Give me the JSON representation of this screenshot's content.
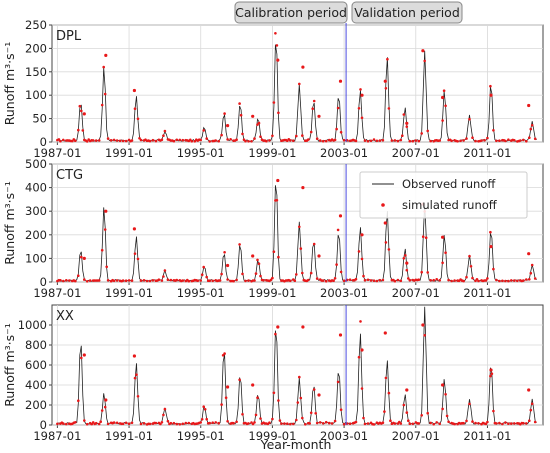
{
  "period_labels": {
    "calibration": "Calibration period",
    "validation": "Validation period"
  },
  "legend": {
    "observed": "Observed runoff",
    "simulated": "simulated runoff"
  },
  "colors": {
    "observed": "#222222",
    "simulated": "#e8181a",
    "split_line": "#4a4ae0",
    "grid": "#d9d9d9"
  },
  "xlabel": "Year-month",
  "chart_data": [
    {
      "type": "line",
      "panel_label": "DPL",
      "ylabel": "Runoff m³·s⁻¹",
      "ylim": [
        0,
        250
      ],
      "yticks": [
        0,
        50,
        100,
        150,
        200,
        250
      ],
      "x_range": [
        1986.7,
        2014.1
      ],
      "xticks": [
        "1987-01",
        "1991-01",
        "1995-01",
        "1999-01",
        "2003-01",
        "2007-01",
        "2011-01"
      ],
      "split": "2003-01",
      "peaks": [
        [
          1988.3,
          85
        ],
        [
          1989.6,
          160
        ],
        [
          1991.4,
          95
        ],
        [
          1993.0,
          20
        ],
        [
          1995.2,
          30
        ],
        [
          1996.3,
          60
        ],
        [
          1997.2,
          80
        ],
        [
          1998.2,
          50
        ],
        [
          1999.2,
          225
        ],
        [
          2000.5,
          120
        ],
        [
          2001.3,
          88
        ],
        [
          2002.7,
          100
        ],
        [
          2003.9,
          110
        ],
        [
          2005.4,
          180
        ],
        [
          2006.4,
          70
        ],
        [
          2007.5,
          190
        ],
        [
          2008.6,
          108
        ],
        [
          2010.0,
          55
        ],
        [
          2011.2,
          125
        ],
        [
          2013.5,
          40
        ]
      ],
      "sim_peaks": [
        [
          1988.5,
          60
        ],
        [
          1989.7,
          185
        ],
        [
          1991.3,
          110
        ],
        [
          1996.5,
          35
        ],
        [
          1997.9,
          55
        ],
        [
          1999.3,
          175
        ],
        [
          2000.7,
          160
        ],
        [
          2001.6,
          55
        ],
        [
          2002.8,
          130
        ],
        [
          2004.0,
          100
        ],
        [
          2005.3,
          130
        ],
        [
          2006.5,
          40
        ],
        [
          2007.4,
          195
        ],
        [
          2008.5,
          95
        ],
        [
          2011.2,
          100
        ],
        [
          2013.3,
          78
        ]
      ]
    },
    {
      "type": "line",
      "panel_label": "CTG",
      "ylabel": "Runoff m³·s⁻¹",
      "ylim": [
        0,
        500
      ],
      "yticks": [
        0,
        100,
        200,
        300,
        400,
        500
      ],
      "x_range": [
        1986.7,
        2014.1
      ],
      "xticks": [
        "1987-01",
        "1991-01",
        "1995-01",
        "1999-01",
        "2003-01",
        "2007-01",
        "2011-01"
      ],
      "split": "2003-01",
      "peaks": [
        [
          1988.3,
          130
        ],
        [
          1989.6,
          320
        ],
        [
          1991.4,
          190
        ],
        [
          1993.0,
          40
        ],
        [
          1995.2,
          60
        ],
        [
          1996.3,
          120
        ],
        [
          1997.2,
          160
        ],
        [
          1998.2,
          90
        ],
        [
          1999.2,
          445
        ],
        [
          2000.5,
          250
        ],
        [
          2001.3,
          170
        ],
        [
          2002.7,
          210
        ],
        [
          2003.9,
          230
        ],
        [
          2005.4,
          300
        ],
        [
          2006.4,
          140
        ],
        [
          2007.5,
          330
        ],
        [
          2008.6,
          200
        ],
        [
          2010.0,
          110
        ],
        [
          2011.2,
          220
        ],
        [
          2013.5,
          70
        ]
      ],
      "sim_peaks": [
        [
          1988.5,
          100
        ],
        [
          1989.7,
          300
        ],
        [
          1991.3,
          225
        ],
        [
          1996.5,
          70
        ],
        [
          1997.9,
          110
        ],
        [
          1999.3,
          430
        ],
        [
          2000.7,
          400
        ],
        [
          2001.6,
          110
        ],
        [
          2002.8,
          280
        ],
        [
          2004.0,
          200
        ],
        [
          2005.3,
          250
        ],
        [
          2006.5,
          80
        ],
        [
          2007.4,
          330
        ],
        [
          2008.5,
          190
        ],
        [
          2011.2,
          150
        ],
        [
          2013.3,
          120
        ]
      ]
    },
    {
      "type": "line",
      "panel_label": "XX",
      "ylabel": "Runoff m³·s⁻¹",
      "ylim": [
        0,
        1200
      ],
      "yticks": [
        0,
        200,
        400,
        600,
        800,
        1000
      ],
      "x_range": [
        1986.7,
        2014.1
      ],
      "xticks": [
        "1987-01",
        "1991-01",
        "1995-01",
        "1999-01",
        "2003-01",
        "2007-01",
        "2011-01"
      ],
      "split": "2003-01",
      "peaks": [
        [
          1988.3,
          850
        ],
        [
          1989.6,
          300
        ],
        [
          1991.4,
          620
        ],
        [
          1993.0,
          150
        ],
        [
          1995.2,
          180
        ],
        [
          1996.3,
          760
        ],
        [
          1997.2,
          500
        ],
        [
          1998.2,
          300
        ],
        [
          1999.2,
          1010
        ],
        [
          2000.5,
          450
        ],
        [
          2001.3,
          400
        ],
        [
          2002.7,
          560
        ],
        [
          2003.9,
          910
        ],
        [
          2005.4,
          650
        ],
        [
          2006.4,
          300
        ],
        [
          2007.5,
          1170
        ],
        [
          2008.6,
          450
        ],
        [
          2010.0,
          250
        ],
        [
          2011.2,
          620
        ],
        [
          2013.5,
          250
        ]
      ],
      "sim_peaks": [
        [
          1988.5,
          700
        ],
        [
          1989.7,
          250
        ],
        [
          1991.3,
          690
        ],
        [
          1996.5,
          380
        ],
        [
          1997.9,
          400
        ],
        [
          1999.3,
          980
        ],
        [
          2000.7,
          980
        ],
        [
          2001.6,
          300
        ],
        [
          2002.8,
          900
        ],
        [
          2004.0,
          750
        ],
        [
          2005.3,
          920
        ],
        [
          2006.5,
          350
        ],
        [
          2007.4,
          1000
        ],
        [
          2008.5,
          400
        ],
        [
          2011.2,
          550
        ],
        [
          2013.3,
          350
        ]
      ]
    }
  ]
}
